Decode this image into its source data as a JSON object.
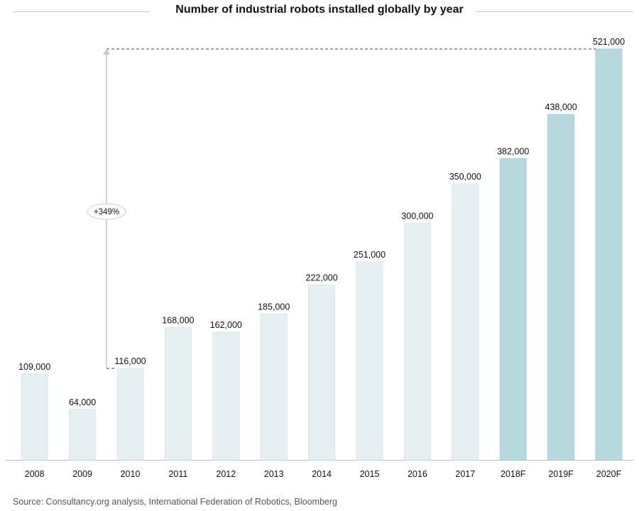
{
  "chart_data": {
    "type": "bar",
    "title": "Number of industrial robots installed globally by year",
    "categories": [
      "2008",
      "2009",
      "2010",
      "2011",
      "2012",
      "2013",
      "2014",
      "2015",
      "2016",
      "2017",
      "2018F",
      "2019F",
      "2020F"
    ],
    "values": [
      109000,
      64000,
      116000,
      168000,
      162000,
      185000,
      222000,
      251000,
      300000,
      350000,
      382000,
      438000,
      521000
    ],
    "value_labels": [
      "109,000",
      "64,000",
      "116,000",
      "168,000",
      "162,000",
      "185,000",
      "222,000",
      "251,000",
      "300,000",
      "350,000",
      "382,000",
      "438,000",
      "521,000"
    ],
    "forecast": [
      false,
      false,
      false,
      false,
      false,
      false,
      false,
      false,
      false,
      false,
      true,
      true,
      true
    ],
    "ylim": [
      0,
      521000
    ],
    "xlabel": "",
    "ylabel": "",
    "grid": false,
    "annotation": {
      "label": "+349%",
      "from_category": "2010",
      "to_category": "2020F"
    },
    "colors": {
      "actual": "#e6f0f2",
      "forecast": "#b6d8df",
      "axis": "#bbbbbb",
      "arrow": "#c8c8c8"
    }
  },
  "source": "Source: Consultancy.org analysis, International Federation of Robotics, Bloomberg"
}
